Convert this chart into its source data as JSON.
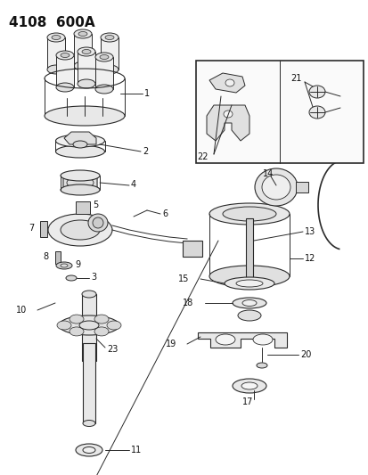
{
  "title": "4108  600A",
  "background_color": "#ffffff",
  "line_color": "#2a2a2a",
  "text_color": "#111111",
  "figsize": [
    4.14,
    5.33
  ],
  "dpi": 100
}
